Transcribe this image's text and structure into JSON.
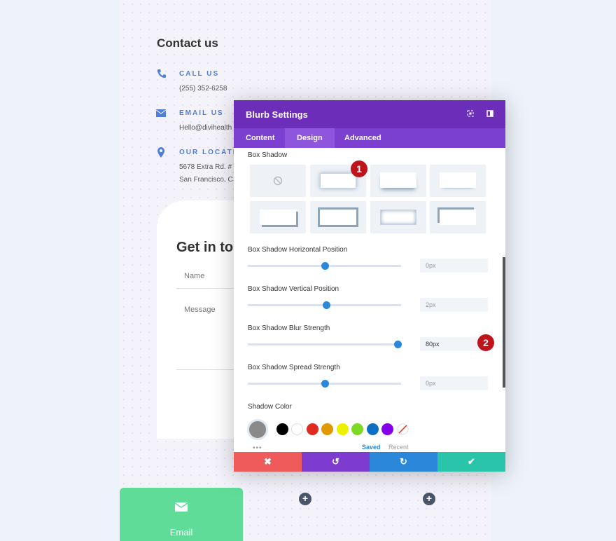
{
  "contact": {
    "title": "Contact us",
    "items": [
      {
        "label": "CALL US",
        "lines": [
          "(255) 352-6258"
        ]
      },
      {
        "label": "EMAIL US",
        "lines": [
          "Hello@divihealth"
        ]
      },
      {
        "label": "OUR LOCATIO",
        "lines": [
          "5678 Extra Rd. #",
          "San Francisco, C"
        ]
      }
    ]
  },
  "form": {
    "title": "Get in to",
    "fields": [
      "Name",
      "Message"
    ]
  },
  "email_card": {
    "label": "Email"
  },
  "modal": {
    "title": "Blurb Settings",
    "tabs": [
      "Content",
      "Design",
      "Advanced"
    ],
    "section": "Box Shadow",
    "sliders": [
      {
        "label": "Box Shadow Horizontal Position",
        "value": "0px"
      },
      {
        "label": "Box Shadow Vertical Position",
        "value": "2px"
      },
      {
        "label": "Box Shadow Blur Strength",
        "value": "80px"
      },
      {
        "label": "Box Shadow Spread Strength",
        "value": "0px"
      }
    ],
    "shadow_color": "Shadow Color",
    "color_tabs": [
      "Saved",
      "Recent"
    ]
  },
  "badges": [
    "1",
    "2"
  ]
}
